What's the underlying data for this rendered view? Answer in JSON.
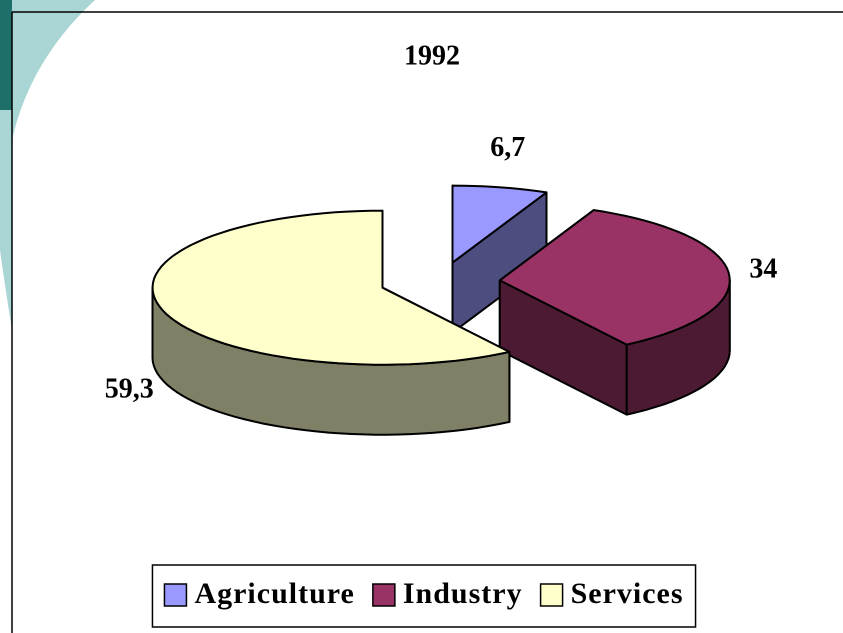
{
  "chart_data": {
    "type": "pie",
    "title": "1992",
    "categories": [
      "Agriculture",
      "Industry",
      "Services"
    ],
    "values": [
      6.7,
      34,
      59.3
    ],
    "value_labels": [
      "6,7",
      "34",
      "59,3"
    ],
    "colors": [
      "#9999ff",
      "#993366",
      "#ffffcc"
    ],
    "legend": "bottom"
  }
}
